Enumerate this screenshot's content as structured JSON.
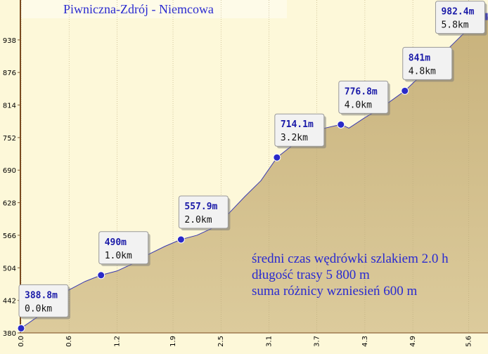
{
  "chart_data": {
    "type": "area",
    "title": "Piwniczna-Zdrój - Niemcowa",
    "xlim": [
      0,
      5.84
    ],
    "ylim": [
      380,
      1014
    ],
    "xticks": [
      {
        "value": 0,
        "label": "0.0"
      },
      0.6,
      1.2,
      1.9,
      2.5,
      3.1,
      3.7,
      4.3,
      4.9,
      5.6
    ],
    "yticks": [
      380,
      442,
      504,
      566,
      628,
      690,
      752,
      814,
      876,
      938
    ],
    "color": "#c8b27c",
    "line_color": "#3a3ab0",
    "x": [
      0.0,
      0.2,
      0.4,
      0.6,
      0.8,
      1.0,
      1.2,
      1.4,
      1.6,
      1.8,
      2.0,
      2.2,
      2.4,
      2.6,
      2.8,
      3.0,
      3.2,
      3.4,
      3.6,
      3.8,
      4.0,
      4.1,
      4.3,
      4.5,
      4.7,
      4.8,
      5.0,
      5.2,
      5.4,
      5.6,
      5.8
    ],
    "values": [
      389,
      410,
      440,
      462,
      478,
      490,
      498,
      512,
      530,
      545,
      558,
      566,
      580,
      608,
      640,
      670,
      714,
      738,
      752,
      770,
      777,
      770,
      790,
      808,
      830,
      841,
      870,
      900,
      930,
      960,
      982.4
    ],
    "points": [
      {
        "x": 0.0,
        "x_label": "0.0km",
        "value": 388.8,
        "value_label": "388.8m"
      },
      {
        "x": 1.0,
        "x_label": "1.0km",
        "value": 490,
        "value_label": "490m"
      },
      {
        "x": 2.0,
        "x_label": "2.0km",
        "value": 557.9,
        "value_label": "557.9m"
      },
      {
        "x": 3.2,
        "x_label": "3.2km",
        "value": 714.1,
        "value_label": "714.1m"
      },
      {
        "x": 4.0,
        "x_label": "4.0km",
        "value": 776.8,
        "value_label": "776.8m"
      },
      {
        "x": 4.8,
        "x_label": "4.8km",
        "value": 841,
        "value_label": "841m"
      },
      {
        "x": 5.8,
        "x_label": "5.8km",
        "value": 982.4,
        "value_label": "982.4m"
      }
    ],
    "notes": [
      "średni czas wędrówki szlakiem 2.0 h",
      "długość trasy 5 800 m",
      "suma różnicy wzniesień 600 m"
    ]
  }
}
